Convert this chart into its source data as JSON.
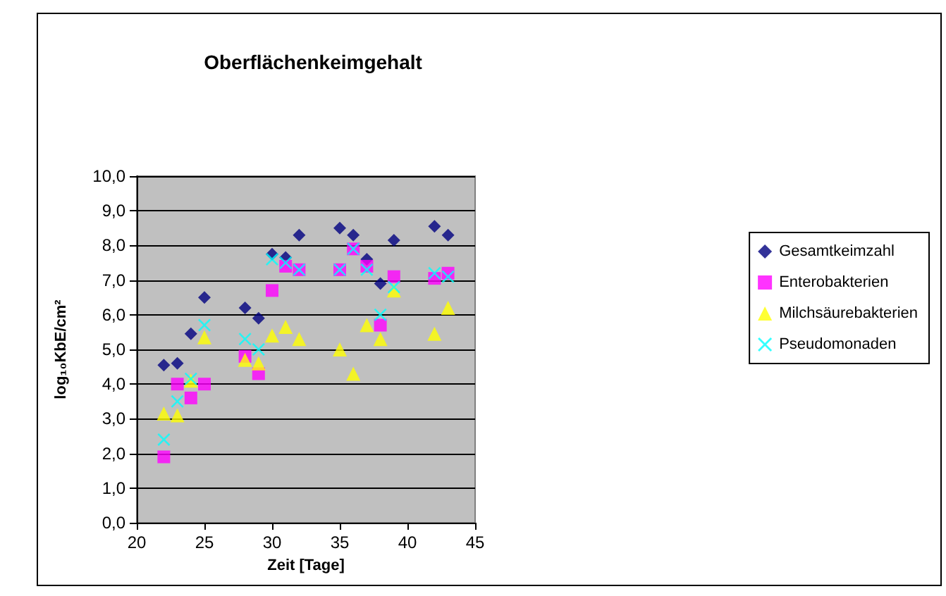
{
  "chart_data": {
    "type": "scatter",
    "title": "Oberflächenkeimgehalt",
    "xlabel": "Zeit [Tage]",
    "ylabel": "log₁₀KbE/cm²",
    "x": [
      22,
      23,
      24,
      25,
      28,
      29,
      30,
      31,
      32,
      35,
      36,
      37,
      38,
      39,
      42,
      43
    ],
    "series": [
      {
        "name": "Gesamtkeimzahl",
        "color": "#000080",
        "marker": "diamond",
        "values": [
          4.55,
          4.6,
          5.45,
          6.5,
          6.2,
          5.9,
          7.75,
          7.65,
          8.3,
          8.5,
          8.3,
          7.6,
          6.9,
          8.15,
          8.55,
          8.3
        ]
      },
      {
        "name": "Enterobakterien",
        "color": "#ff00ff",
        "marker": "square",
        "values": [
          1.9,
          4.0,
          3.6,
          4.0,
          4.8,
          4.3,
          6.7,
          7.4,
          7.3,
          7.3,
          7.9,
          7.4,
          5.7,
          7.1,
          7.05,
          7.2
        ]
      },
      {
        "name": "Milchsäurebakterien",
        "color": "#ffff00",
        "marker": "triangle",
        "values": [
          3.15,
          3.1,
          4.1,
          5.35,
          4.7,
          4.6,
          5.4,
          5.65,
          5.3,
          5.0,
          4.3,
          5.7,
          5.3,
          6.7,
          5.45,
          6.2
        ]
      },
      {
        "name": "Pseudomonaden",
        "color": "#00ffff",
        "marker": "cross",
        "values": [
          2.4,
          3.5,
          4.15,
          5.7,
          5.3,
          5.0,
          7.6,
          7.5,
          7.3,
          7.3,
          7.9,
          7.3,
          6.0,
          6.8,
          7.2,
          7.1
        ]
      }
    ],
    "xlim": [
      20,
      45
    ],
    "xticks": [
      20,
      25,
      30,
      35,
      40,
      45
    ],
    "ylim": [
      0,
      10
    ],
    "yticks": [
      {
        "value": 0,
        "label": "0,0"
      },
      {
        "value": 1,
        "label": "1,0"
      },
      {
        "value": 2,
        "label": "2,0"
      },
      {
        "value": 3,
        "label": "3,0"
      },
      {
        "value": 4,
        "label": "4,0"
      },
      {
        "value": 5,
        "label": "5,0"
      },
      {
        "value": 6,
        "label": "6,0"
      },
      {
        "value": 7,
        "label": "7,0"
      },
      {
        "value": 8,
        "label": "8,0"
      },
      {
        "value": 9,
        "label": "9,0"
      },
      {
        "value": 10,
        "label": "10,0"
      }
    ],
    "grid": "y",
    "legend": "right"
  }
}
